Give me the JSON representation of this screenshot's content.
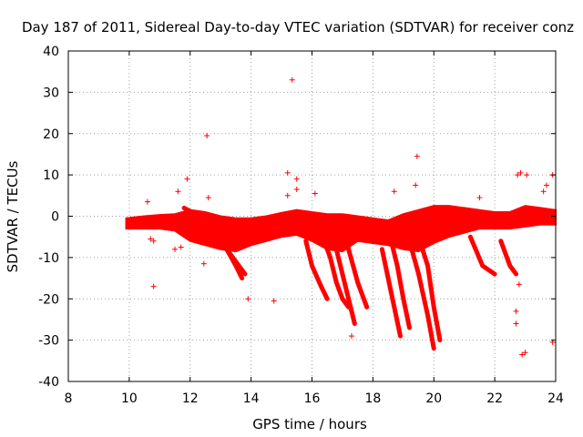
{
  "chart_data": {
    "type": "scatter",
    "title": "Day 187 of 2011, Sidereal Day-to-day VTEC variation (SDTVAR) for receiver conz",
    "xlabel": "GPS time / hours",
    "ylabel": "SDTVAR / TECUs",
    "xlim": [
      8,
      24
    ],
    "ylim": [
      -40,
      40
    ],
    "xticks": [
      8,
      10,
      12,
      14,
      16,
      18,
      20,
      22,
      24
    ],
    "yticks": [
      -40,
      -30,
      -20,
      -10,
      0,
      10,
      20,
      30,
      40
    ],
    "grid": true,
    "marker": "+",
    "color": "#ff0000",
    "band": {
      "x": [
        9.9,
        10.5,
        11.0,
        11.5,
        12.0,
        12.5,
        13.0,
        13.5,
        14.0,
        14.5,
        15.0,
        15.5,
        16.0,
        16.5,
        17.0,
        17.5,
        18.0,
        18.5,
        19.0,
        19.5,
        20.0,
        20.5,
        21.0,
        21.5,
        22.0,
        22.5,
        23.0,
        23.5,
        24.0
      ],
      "upper": [
        -0.5,
        0.0,
        0.3,
        0.5,
        1.5,
        1.0,
        0.0,
        -0.5,
        -0.5,
        0.0,
        0.8,
        1.5,
        1.0,
        0.5,
        0.5,
        0.0,
        -0.5,
        -1.0,
        0.5,
        1.5,
        2.5,
        2.5,
        2.0,
        1.5,
        1.0,
        1.0,
        2.5,
        2.0,
        1.5
      ],
      "lower": [
        -3.0,
        -3.0,
        -3.0,
        -3.5,
        -6.0,
        -7.0,
        -8.0,
        -8.5,
        -7.0,
        -6.0,
        -5.0,
        -4.5,
        -6.0,
        -8.0,
        -8.5,
        -6.0,
        -6.5,
        -7.0,
        -8.0,
        -8.5,
        -6.5,
        -5.0,
        -4.0,
        -3.0,
        -3.0,
        -3.0,
        -2.5,
        -2.0,
        -2.0
      ]
    },
    "dips": [
      {
        "x": [
          11.8,
          12.3,
          12.8,
          13.2,
          13.5,
          13.7
        ],
        "y": [
          2,
          0,
          -4,
          -8,
          -12,
          -15
        ]
      },
      {
        "x": [
          12.5,
          13.0,
          13.3,
          13.6,
          13.8
        ],
        "y": [
          -3,
          -6,
          -9,
          -12,
          -14
        ]
      },
      {
        "x": [
          15.8,
          16.0,
          16.3,
          16.5
        ],
        "y": [
          -6,
          -12,
          -17,
          -20
        ]
      },
      {
        "x": [
          16.4,
          16.6,
          16.8,
          17.0,
          17.2
        ],
        "y": [
          -6,
          -10,
          -16,
          -20,
          -22
        ]
      },
      {
        "x": [
          16.8,
          17.0,
          17.2,
          17.4
        ],
        "y": [
          -8,
          -14,
          -20,
          -26
        ]
      },
      {
        "x": [
          17.0,
          17.2,
          17.5,
          17.8
        ],
        "y": [
          -2,
          -8,
          -16,
          -22
        ]
      },
      {
        "x": [
          18.3,
          18.5,
          18.7,
          18.9
        ],
        "y": [
          -8,
          -15,
          -22,
          -29
        ]
      },
      {
        "x": [
          18.6,
          18.8,
          19.0,
          19.2
        ],
        "y": [
          -6,
          -12,
          -20,
          -27
        ]
      },
      {
        "x": [
          19.2,
          19.5,
          19.8,
          20.0
        ],
        "y": [
          -6,
          -14,
          -24,
          -32
        ]
      },
      {
        "x": [
          19.5,
          19.8,
          20.0,
          20.2
        ],
        "y": [
          -5,
          -12,
          -22,
          -30
        ]
      },
      {
        "x": [
          21.2,
          21.6,
          22.0
        ],
        "y": [
          -5,
          -12,
          -14
        ]
      },
      {
        "x": [
          22.2,
          22.5,
          22.7
        ],
        "y": [
          -6,
          -12,
          -14
        ]
      }
    ],
    "points": [
      {
        "x": 15.35,
        "y": 33.0
      },
      {
        "x": 12.55,
        "y": 19.5
      },
      {
        "x": 19.45,
        "y": 14.5
      },
      {
        "x": 15.2,
        "y": 10.5
      },
      {
        "x": 15.5,
        "y": 9.0
      },
      {
        "x": 15.5,
        "y": 6.5
      },
      {
        "x": 15.2,
        "y": 5.0
      },
      {
        "x": 16.1,
        "y": 5.5
      },
      {
        "x": 21.5,
        "y": 4.5
      },
      {
        "x": 12.6,
        "y": 4.5
      },
      {
        "x": 11.6,
        "y": 6.0
      },
      {
        "x": 11.9,
        "y": 9.0
      },
      {
        "x": 10.6,
        "y": 3.5
      },
      {
        "x": 23.7,
        "y": 7.5
      },
      {
        "x": 23.9,
        "y": 10.0
      },
      {
        "x": 22.85,
        "y": 10.5
      },
      {
        "x": 22.75,
        "y": 10.0
      },
      {
        "x": 23.05,
        "y": 10.0
      },
      {
        "x": 18.7,
        "y": 6.0
      },
      {
        "x": 19.4,
        "y": 7.5
      },
      {
        "x": 23.6,
        "y": 6.0
      },
      {
        "x": 10.8,
        "y": -17.0
      },
      {
        "x": 12.45,
        "y": -11.5
      },
      {
        "x": 13.9,
        "y": -20.0
      },
      {
        "x": 14.75,
        "y": -20.5
      },
      {
        "x": 22.7,
        "y": -23.0
      },
      {
        "x": 22.7,
        "y": -26.0
      },
      {
        "x": 22.9,
        "y": -33.5
      },
      {
        "x": 23.0,
        "y": -33.0
      },
      {
        "x": 23.9,
        "y": -30.5
      },
      {
        "x": 17.3,
        "y": -29.0
      },
      {
        "x": 22.8,
        "y": -16.5
      },
      {
        "x": 10.7,
        "y": -5.5
      },
      {
        "x": 10.8,
        "y": -6.0
      },
      {
        "x": 11.7,
        "y": -7.5
      },
      {
        "x": 11.5,
        "y": -8.0
      }
    ]
  }
}
